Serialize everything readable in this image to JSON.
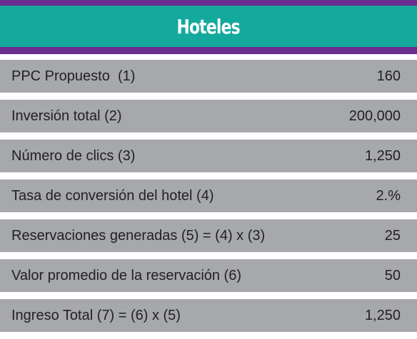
{
  "header": {
    "title": "Hoteles"
  },
  "colors": {
    "band": "#6a2f8e",
    "header": "#14a99d",
    "row": "#a7a8ab"
  },
  "rows": [
    {
      "label": "PPC Propuesto  (1)",
      "value": "160"
    },
    {
      "label": "Inversión total (2)",
      "value": "200,000"
    },
    {
      "label": "Número de clics (3)",
      "value": "1,250"
    },
    {
      "label": "Tasa de conversión del hotel (4)",
      "value": "2.%"
    },
    {
      "label": "Reservaciones generadas (5) = (4) x (3)",
      "value": "25"
    },
    {
      "label": "Valor promedio de la reservación (6)",
      "value": "50"
    },
    {
      "label": "Ingreso Total (7) = (6) x (5)",
      "value": "1,250"
    }
  ]
}
